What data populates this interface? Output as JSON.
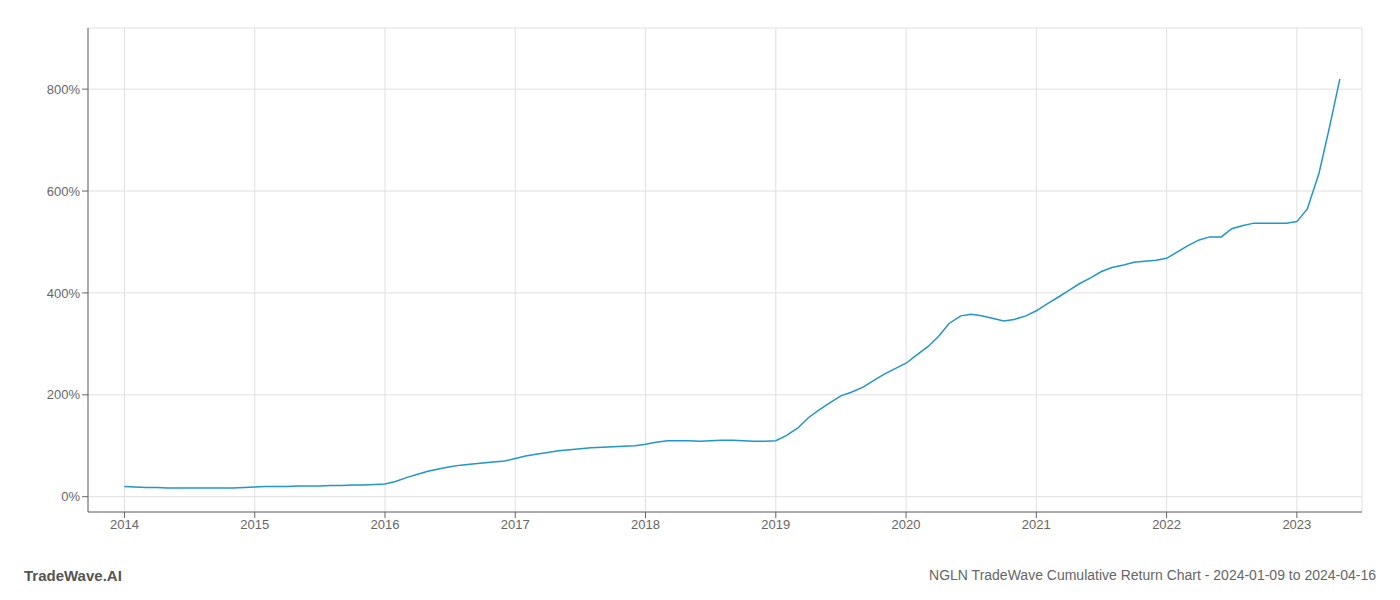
{
  "chart_data": {
    "type": "line",
    "title": "NGLN TradeWave Cumulative Return Chart - 2024-01-09 to 2024-04-16",
    "annotations": [
      "TradeWave.AI"
    ],
    "color": "#2196C8",
    "grid": true,
    "x": [
      2014.0,
      2014.08,
      2014.17,
      2014.25,
      2014.33,
      2014.42,
      2014.5,
      2014.58,
      2014.67,
      2014.75,
      2014.83,
      2014.92,
      2015.0,
      2015.08,
      2015.17,
      2015.25,
      2015.33,
      2015.42,
      2015.5,
      2015.58,
      2015.67,
      2015.75,
      2015.83,
      2015.92,
      2016.0,
      2016.08,
      2016.17,
      2016.25,
      2016.33,
      2016.42,
      2016.5,
      2016.58,
      2016.67,
      2016.75,
      2016.83,
      2016.92,
      2017.0,
      2017.08,
      2017.17,
      2017.25,
      2017.33,
      2017.42,
      2017.5,
      2017.58,
      2017.67,
      2017.75,
      2017.83,
      2017.92,
      2018.0,
      2018.08,
      2018.17,
      2018.25,
      2018.33,
      2018.42,
      2018.5,
      2018.58,
      2018.67,
      2018.75,
      2018.83,
      2018.92,
      2019.0,
      2019.08,
      2019.17,
      2019.25,
      2019.33,
      2019.42,
      2019.5,
      2019.58,
      2019.67,
      2019.75,
      2019.83,
      2019.92,
      2020.0,
      2020.08,
      2020.17,
      2020.25,
      2020.33,
      2020.42,
      2020.5,
      2020.58,
      2020.67,
      2020.75,
      2020.83,
      2020.92,
      2021.0,
      2021.08,
      2021.17,
      2021.25,
      2021.33,
      2021.42,
      2021.5,
      2021.58,
      2021.67,
      2021.75,
      2021.83,
      2021.92,
      2022.0,
      2022.08,
      2022.17,
      2022.25,
      2022.33,
      2022.42,
      2022.5,
      2022.58,
      2022.67,
      2022.75,
      2022.83,
      2022.92,
      2023.0,
      2023.08,
      2023.17,
      2023.25,
      2023.33
    ],
    "values": [
      20,
      19,
      18,
      18,
      17,
      17,
      17,
      17,
      17,
      17,
      17,
      18,
      19,
      20,
      20,
      20,
      21,
      21,
      21,
      22,
      22,
      23,
      23,
      24,
      25,
      30,
      38,
      44,
      50,
      55,
      59,
      62,
      64,
      66,
      68,
      70,
      75,
      80,
      84,
      87,
      90,
      92,
      94,
      96,
      97,
      98,
      99,
      100,
      103,
      107,
      110,
      110,
      110,
      109,
      110,
      111,
      111,
      110,
      109,
      109,
      110,
      120,
      135,
      155,
      170,
      185,
      198,
      205,
      215,
      228,
      240,
      252,
      262,
      278,
      295,
      315,
      340,
      355,
      358,
      355,
      350,
      345,
      348,
      355,
      365,
      378,
      392,
      405,
      418,
      430,
      442,
      450,
      455,
      460,
      462,
      464,
      468,
      480,
      494,
      504,
      510,
      510,
      526,
      532,
      537,
      537,
      537,
      537,
      540,
      565,
      635,
      725,
      820
    ],
    "xlim": [
      2013.72,
      2023.5
    ],
    "xticks": [
      2014,
      2015,
      2016,
      2017,
      2018,
      2019,
      2020,
      2021,
      2022,
      2023
    ],
    "ylim": [
      -30,
      920
    ],
    "yticks": [
      {
        "value": 0,
        "label": "0%"
      },
      {
        "value": 200,
        "label": "200%"
      },
      {
        "value": 400,
        "label": "400%"
      },
      {
        "value": 600,
        "label": "600%"
      },
      {
        "value": 800,
        "label": "800%"
      }
    ]
  }
}
